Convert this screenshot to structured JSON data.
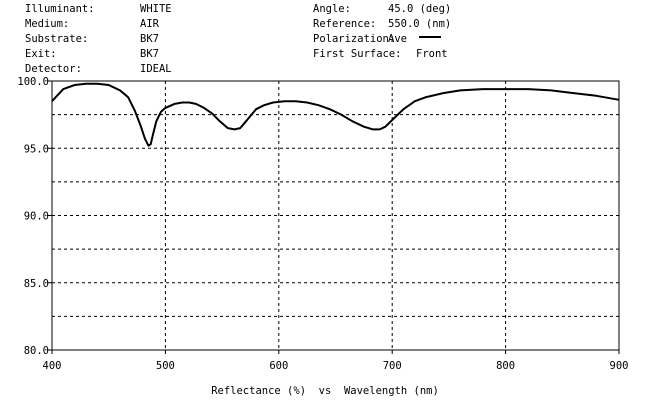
{
  "header": {
    "left": [
      {
        "label": "Illuminant:",
        "value": "WHITE"
      },
      {
        "label": "Medium:",
        "value": "AIR"
      },
      {
        "label": "Substrate:",
        "value": "BK7"
      },
      {
        "label": "Exit:",
        "value": "BK7"
      },
      {
        "label": "Detector:",
        "value": "IDEAL"
      }
    ],
    "right": [
      {
        "label": "Angle:",
        "value": "45.0 (deg)"
      },
      {
        "label": "Reference:",
        "value": "550.0 (nm)"
      },
      {
        "label": "Polarization:",
        "value": "Ave"
      },
      {
        "label": "First Surface:",
        "value": "Front"
      }
    ]
  },
  "chart_data": {
    "type": "line",
    "title": "",
    "xlabel": "Reflectance (%)  vs  Wavelength (nm)",
    "ylabel": "",
    "xlim": [
      400,
      900
    ],
    "ylim": [
      80.0,
      100.0
    ],
    "xticks": [
      400,
      500,
      600,
      700,
      800,
      900
    ],
    "yticks": [
      80.0,
      85.0,
      90.0,
      95.0,
      100.0
    ],
    "x_tick_labels": [
      "400",
      "500",
      "600",
      "700",
      "800",
      "900"
    ],
    "y_tick_labels": [
      "80.0",
      "85.0",
      "90.0",
      "95.0",
      "100.0"
    ],
    "grid": true,
    "legend": "top-right",
    "series": [
      {
        "name": "Ave",
        "color": "#000000",
        "x": [
          400,
          410,
          420,
          430,
          440,
          450,
          460,
          467,
          473,
          478,
          482,
          485,
          487,
          489,
          492,
          496,
          500,
          508,
          515,
          521,
          527,
          534,
          541,
          548,
          555,
          561,
          566,
          570,
          575,
          580,
          587,
          595,
          605,
          615,
          625,
          635,
          645,
          655,
          665,
          675,
          683,
          689,
          694,
          700,
          710,
          720,
          730,
          745,
          760,
          780,
          800,
          820,
          840,
          860,
          880,
          900
        ],
        "y": [
          98.5,
          99.4,
          99.7,
          99.8,
          99.8,
          99.7,
          99.3,
          98.8,
          97.8,
          96.7,
          95.7,
          95.2,
          95.3,
          96.0,
          97.0,
          97.7,
          98.0,
          98.3,
          98.4,
          98.4,
          98.3,
          98.0,
          97.6,
          97.0,
          96.5,
          96.4,
          96.5,
          96.9,
          97.4,
          97.9,
          98.2,
          98.4,
          98.5,
          98.5,
          98.4,
          98.2,
          97.9,
          97.5,
          97.0,
          96.6,
          96.4,
          96.4,
          96.6,
          97.1,
          97.9,
          98.5,
          98.8,
          99.1,
          99.3,
          99.4,
          99.4,
          99.4,
          99.3,
          99.1,
          98.9,
          98.6
        ]
      }
    ]
  }
}
